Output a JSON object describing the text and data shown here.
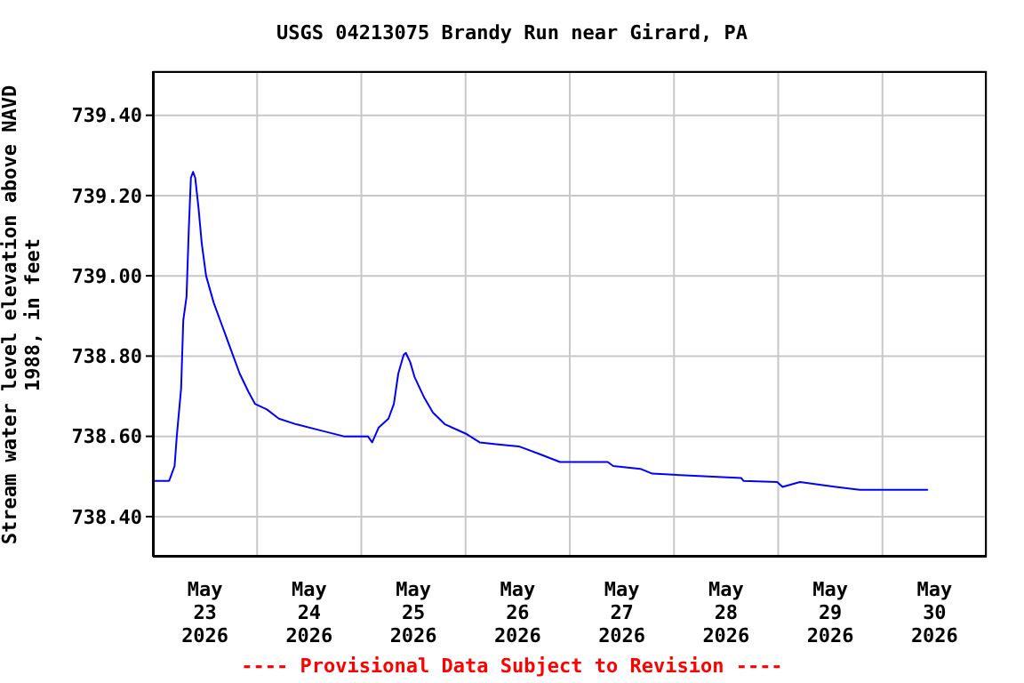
{
  "chart_data": {
    "type": "line",
    "title": "USGS 04213075 Brandy Run near Girard, PA",
    "ylabel": "Stream water level elevation above NAVD 1988, in feet",
    "annotations": [
      "---- Provisional Data Subject to Revision ----"
    ],
    "x": [
      "2026-05-23T00:00",
      "2026-05-23T03:45",
      "2026-05-23T05:00",
      "2026-05-23T05:30",
      "2026-05-23T06:30",
      "2026-05-23T07:00",
      "2026-05-23T07:45",
      "2026-05-23T08:15",
      "2026-05-23T08:45",
      "2026-05-23T09:15",
      "2026-05-23T09:45",
      "2026-05-23T10:30",
      "2026-05-23T11:15",
      "2026-05-23T12:15",
      "2026-05-23T14:00",
      "2026-05-23T16:00",
      "2026-05-23T18:00",
      "2026-05-23T20:00",
      "2026-05-23T22:00",
      "2026-05-23T23:30",
      "2026-05-24T02:15",
      "2026-05-24T05:00",
      "2026-05-24T09:00",
      "2026-05-24T14:30",
      "2026-05-24T20:00",
      "2026-05-25T01:30",
      "2026-05-25T02:30",
      "2026-05-25T04:00",
      "2026-05-25T06:15",
      "2026-05-25T07:30",
      "2026-05-25T08:30",
      "2026-05-25T09:45",
      "2026-05-25T10:15",
      "2026-05-25T11:15",
      "2026-05-25T12:15",
      "2026-05-25T14:30",
      "2026-05-25T16:30",
      "2026-05-25T19:15",
      "2026-05-26T00:00",
      "2026-05-26T03:15",
      "2026-05-26T07:30",
      "2026-05-26T12:15",
      "2026-05-26T17:00",
      "2026-05-26T21:45",
      "2026-05-27T08:45",
      "2026-05-27T10:00",
      "2026-05-27T16:15",
      "2026-05-27T19:00",
      "2026-05-28T15:30",
      "2026-05-28T16:00",
      "2026-05-28T23:45",
      "2026-05-29T01:00",
      "2026-05-29T05:00",
      "2026-05-29T13:15",
      "2026-05-29T18:45",
      "2026-05-30T10:30"
    ],
    "series": [
      {
        "color": "#0000ff",
        "values": [
          738.489,
          738.489,
          738.526,
          738.6,
          738.719,
          738.889,
          738.948,
          739.111,
          739.244,
          739.259,
          739.244,
          739.17,
          739.081,
          739.0,
          738.933,
          738.874,
          738.815,
          738.756,
          738.711,
          738.681,
          738.667,
          738.644,
          738.63,
          738.615,
          738.6,
          738.6,
          738.585,
          738.622,
          738.644,
          738.681,
          738.756,
          738.803,
          738.808,
          738.785,
          738.748,
          738.696,
          738.659,
          738.63,
          738.607,
          738.585,
          738.58,
          738.575,
          738.556,
          738.536,
          738.536,
          738.526,
          738.519,
          738.507,
          738.496,
          738.489,
          738.486,
          738.474,
          738.486,
          738.474,
          738.467,
          738.467
        ]
      }
    ],
    "xlim": [
      "2026-05-23T00:00",
      "2026-05-31T00:00"
    ],
    "xticks": [
      {
        "value": "2026-05-23T00:00",
        "label": null
      },
      {
        "value": "2026-05-23T12:00",
        "label": "May\n23\n2026"
      },
      {
        "value": "2026-05-24T00:00",
        "label": null
      },
      {
        "value": "2026-05-24T12:00",
        "label": "May\n24\n2026"
      },
      {
        "value": "2026-05-25T00:00",
        "label": null
      },
      {
        "value": "2026-05-25T12:00",
        "label": "May\n25\n2026"
      },
      {
        "value": "2026-05-26T00:00",
        "label": null
      },
      {
        "value": "2026-05-26T12:00",
        "label": "May\n26\n2026"
      },
      {
        "value": "2026-05-27T00:00",
        "label": null
      },
      {
        "value": "2026-05-27T12:00",
        "label": "May\n27\n2026"
      },
      {
        "value": "2026-05-28T00:00",
        "label": null
      },
      {
        "value": "2026-05-28T12:00",
        "label": "May\n28\n2026"
      },
      {
        "value": "2026-05-29T00:00",
        "label": null
      },
      {
        "value": "2026-05-29T12:00",
        "label": "May\n29\n2026"
      },
      {
        "value": "2026-05-30T00:00",
        "label": null
      },
      {
        "value": "2026-05-30T12:00",
        "label": "May\n30\n2026"
      },
      {
        "value": "2026-05-31T00:00",
        "label": null
      }
    ],
    "ylim": [
      738.3,
      739.51
    ],
    "yticks": [
      {
        "value": 738.4,
        "label": "738.40"
      },
      {
        "value": 738.6,
        "label": "738.60"
      },
      {
        "value": 738.8,
        "label": "738.80"
      },
      {
        "value": 739.0,
        "label": "739.00"
      },
      {
        "value": 739.2,
        "label": "739.20"
      },
      {
        "value": 739.4,
        "label": "739.40"
      }
    ],
    "grid": true,
    "legend": false,
    "marker": "none",
    "line_style": "solid"
  }
}
